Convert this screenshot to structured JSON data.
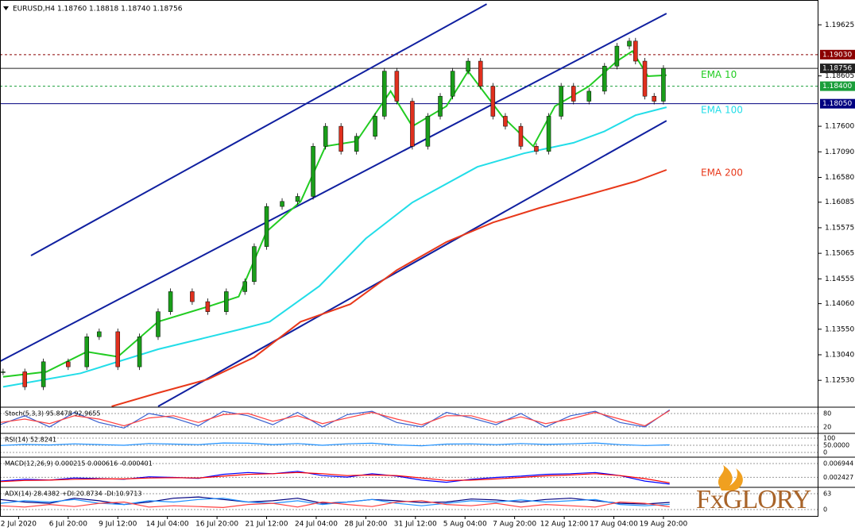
{
  "header": "EURUSD,H4  1.18760 1.18818 1.18740 1.18756",
  "logo": "FxGLORY",
  "chart_data": {
    "type": "candlestick",
    "xlim": [
      0,
      264
    ],
    "xticks": [
      {
        "value": 6,
        "label": "2 Jul 2020"
      },
      {
        "value": 22,
        "label": "6 Jul 20:00"
      },
      {
        "value": 38,
        "label": "9 Jul 12:00"
      },
      {
        "value": 54,
        "label": "14 Jul 04:00"
      },
      {
        "value": 70,
        "label": "16 Jul 20:00"
      },
      {
        "value": 86,
        "label": "21 Jul 12:00"
      },
      {
        "value": 102,
        "label": "24 Jul 04:00"
      },
      {
        "value": 118,
        "label": "28 Jul 20:00"
      },
      {
        "value": 134,
        "label": "31 Jul 12:00"
      },
      {
        "value": 150,
        "label": "5 Aug 04:00"
      },
      {
        "value": 166,
        "label": "7 Aug 20:00"
      },
      {
        "value": 182,
        "label": "12 Aug 12:00"
      },
      {
        "value": 198,
        "label": "17 Aug 04:00"
      },
      {
        "value": 214,
        "label": "19 Aug 20:00"
      }
    ],
    "ylim": [
      1.1201,
      1.2012
    ],
    "yticks": [
      {
        "value": 1.19625,
        "label": "1.19625"
      },
      {
        "value": 1.18605,
        "label": "1.18605"
      },
      {
        "value": 1.176,
        "label": "1.17600"
      },
      {
        "value": 1.1709,
        "label": "1.17090"
      },
      {
        "value": 1.1658,
        "label": "1.16580"
      },
      {
        "value": 1.16085,
        "label": "1.16085"
      },
      {
        "value": 1.15575,
        "label": "1.15575"
      },
      {
        "value": 1.15065,
        "label": "1.15065"
      },
      {
        "value": 1.14555,
        "label": "1.14555"
      },
      {
        "value": 1.1406,
        "label": "1.14060"
      },
      {
        "value": 1.1355,
        "label": "1.13550"
      },
      {
        "value": 1.1304,
        "label": "1.13040"
      },
      {
        "value": 1.1253,
        "label": "1.12530"
      }
    ],
    "x": [
      1,
      8,
      14,
      22,
      28,
      32,
      38,
      45,
      51,
      55,
      62,
      67,
      73,
      79,
      82,
      86,
      91,
      96,
      101,
      105,
      110,
      115,
      121,
      124,
      128,
      133,
      138,
      142,
      146,
      151,
      155,
      159,
      163,
      168,
      173,
      177,
      181,
      185,
      190,
      195,
      199,
      203,
      205,
      208,
      211,
      214
    ],
    "close": [
      1.127,
      1.124,
      1.129,
      1.128,
      1.134,
      1.135,
      1.128,
      1.134,
      1.139,
      1.143,
      1.141,
      1.139,
      1.143,
      1.145,
      1.152,
      1.16,
      1.161,
      1.162,
      1.172,
      1.176,
      1.171,
      1.174,
      1.178,
      1.187,
      1.181,
      1.172,
      1.178,
      1.182,
      1.187,
      1.189,
      1.184,
      1.178,
      1.176,
      1.172,
      1.171,
      1.178,
      1.184,
      1.181,
      1.183,
      1.188,
      1.192,
      1.193,
      1.189,
      1.182,
      1.181,
      1.18756
    ],
    "up_color": "#1a9e1a",
    "down_color": "#e0301e",
    "series": [
      {
        "name": "EMA 10",
        "color": "#22cc22",
        "x": [
          1,
          15,
          28,
          38,
          51,
          67,
          77,
          86,
          97,
          105,
          115,
          126,
          133,
          144,
          151,
          162,
          172,
          179,
          190,
          199,
          204,
          209,
          215
        ],
        "values": [
          1.126,
          1.127,
          1.131,
          1.13,
          1.137,
          1.14,
          1.142,
          1.155,
          1.161,
          1.172,
          1.173,
          1.183,
          1.176,
          1.18,
          1.187,
          1.178,
          1.172,
          1.18,
          1.184,
          1.189,
          1.191,
          1.186,
          1.1862
        ]
      },
      {
        "name": "EMA 100",
        "color": "#22dde8",
        "x": [
          1,
          26,
          51,
          77,
          87,
          103,
          118,
          133,
          154,
          169,
          185,
          195,
          205,
          215
        ],
        "values": [
          1.124,
          1.1267,
          1.1315,
          1.1354,
          1.137,
          1.1441,
          1.1536,
          1.1608,
          1.1679,
          1.1706,
          1.1727,
          1.175,
          1.1782,
          1.1798
        ]
      },
      {
        "name": "EMA 200",
        "color": "#e8381a",
        "x": [
          36,
          51,
          67,
          82,
          97,
          113,
          128,
          144,
          159,
          174,
          190,
          205,
          215
        ],
        "values": [
          1.1201,
          1.1228,
          1.1255,
          1.1299,
          1.137,
          1.1405,
          1.1473,
          1.1529,
          1.1568,
          1.1597,
          1.1624,
          1.165,
          1.1673
        ]
      }
    ],
    "levels": [
      {
        "value": 1.1903,
        "label": "1.19030",
        "color": "#8b0000",
        "dash": true
      },
      {
        "value": 1.18756,
        "label": "1.18756",
        "color": "#222222",
        "dash": false
      },
      {
        "value": 1.184,
        "label": "1.18400",
        "color": "#1a9e3a",
        "dash": true
      },
      {
        "value": 1.1805,
        "label": "1.18050",
        "color": "#000080",
        "dash": false
      }
    ],
    "trendline_color": "#1020a0",
    "trendlines": [
      {
        "x": [
          10,
          157
        ],
        "values": [
          1.1502,
          1.2004
        ]
      },
      {
        "x": [
          0,
          215
        ],
        "values": [
          1.1291,
          1.1985
        ]
      },
      {
        "x": [
          51,
          215
        ],
        "values": [
          1.1201,
          1.1771
        ]
      }
    ],
    "panel_x": [
      0,
      8,
      16,
      24,
      32,
      40,
      48,
      56,
      64,
      72,
      80,
      88,
      96,
      104,
      112,
      120,
      128,
      136,
      144,
      152,
      160,
      168,
      176,
      184,
      192,
      200,
      208,
      216
    ],
    "panels": [
      {
        "name": "Stoch(5,3,3) 95.8478 92.9655",
        "ylim": [
          -5,
          101
        ],
        "yticks": [
          80,
          20
        ],
        "series": [
          {
            "color": "#3a5fd0",
            "values": [
              30,
              70,
              20,
              85,
              40,
              15,
              80,
              60,
              25,
              90,
              70,
              30,
              85,
              20,
              75,
              90,
              40,
              20,
              85,
              60,
              30,
              80,
              20,
              70,
              90,
              40,
              20,
              96
            ]
          },
          {
            "color": "#ff4040",
            "values": [
              40,
              55,
              35,
              70,
              55,
              25,
              60,
              70,
              40,
              75,
              80,
              45,
              70,
              35,
              60,
              85,
              55,
              30,
              70,
              70,
              40,
              65,
              35,
              55,
              85,
              55,
              25,
              93
            ]
          }
        ]
      },
      {
        "name": "RSI(14) 52.8241",
        "ylim": [
          -28,
          122
        ],
        "yticks": [
          100,
          {
            "value": 50,
            "label": "50.0000"
          },
          0
        ],
        "series": [
          {
            "color": "#1e90ff",
            "values": [
              48,
              56,
              52,
              60,
              55,
              50,
              62,
              58,
              54,
              66,
              64,
              55,
              62,
              50,
              60,
              64,
              52,
              46,
              58,
              60,
              54,
              62,
              56,
              60,
              66,
              54,
              48,
              52.8
            ]
          }
        ]
      },
      {
        "name": "MACD(12,26,9) 0.000215 0.000616 -0.000401",
        "ylim": [
          -0.0006,
          0.0085
        ],
        "yticks": [
          {
            "value": 0.006944,
            "label": "0.006944"
          },
          {
            "value": 0.002427,
            "label": "0.002427"
          }
        ],
        "series": [
          {
            "color": "#0000ff",
            "values": [
              0.0012,
              0.0018,
              0.0015,
              0.0022,
              0.002,
              0.0018,
              0.0026,
              0.0024,
              0.0021,
              0.0034,
              0.004,
              0.0036,
              0.0044,
              0.003,
              0.0025,
              0.0036,
              0.0028,
              0.0015,
              0.0008,
              0.0018,
              0.0024,
              0.0028,
              0.0034,
              0.0036,
              0.004,
              0.003,
              0.0012,
              0.000215
            ]
          },
          {
            "color": "#ff0000",
            "values": [
              0.001,
              0.0014,
              0.0015,
              0.0018,
              0.0019,
              0.0019,
              0.0022,
              0.0023,
              0.0022,
              0.0028,
              0.0034,
              0.0036,
              0.004,
              0.0036,
              0.003,
              0.0032,
              0.003,
              0.0022,
              0.0014,
              0.0015,
              0.0019,
              0.0024,
              0.0029,
              0.0032,
              0.0036,
              0.003,
              0.002,
              0.000616
            ]
          }
        ]
      },
      {
        "name": "ADX(14) 28.4382 +DI:20.8734 -DI:10.9713",
        "ylim": [
          -19,
          82
        ],
        "yticks": [
          63,
          0
        ],
        "series": [
          {
            "color": "#000080",
            "values": [
              40,
              30,
              25,
              45,
              35,
              20,
              30,
              45,
              50,
              40,
              30,
              35,
              45,
              25,
              30,
              40,
              35,
              28,
              30,
              42,
              38,
              30,
              40,
              45,
              35,
              25,
              22,
              28.4382
            ]
          },
          {
            "color": "#1e90ff",
            "values": [
              25,
              35,
              30,
              40,
              25,
              20,
              35,
              30,
              40,
              45,
              30,
              25,
              35,
              20,
              30,
              40,
              25,
              15,
              25,
              35,
              30,
              38,
              30,
              35,
              40,
              20,
              15,
              20.8734
            ]
          },
          {
            "color": "#ff4040",
            "values": [
              15,
              10,
              20,
              12,
              25,
              30,
              10,
              15,
              12,
              8,
              20,
              25,
              10,
              30,
              20,
              12,
              30,
              35,
              20,
              15,
              25,
              10,
              20,
              15,
              10,
              30,
              25,
              10.9713
            ]
          }
        ]
      }
    ]
  }
}
